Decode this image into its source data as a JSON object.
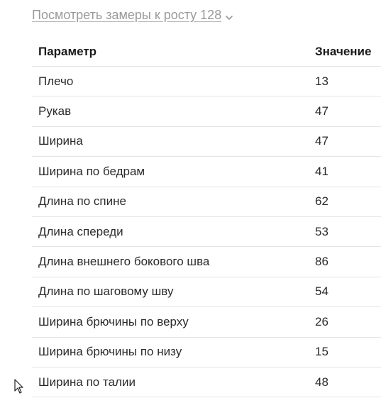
{
  "measurements_toggle": {
    "label": "Посмотреть замеры к росту 128",
    "icon": "chevron-down-icon"
  },
  "table": {
    "headers": {
      "param": "Параметр",
      "value": "Значение"
    },
    "rows": [
      {
        "param": "Плечо",
        "value": "13"
      },
      {
        "param": "Рукав",
        "value": "47"
      },
      {
        "param": "Ширина",
        "value": "47"
      },
      {
        "param": "Ширина по бедрам",
        "value": "41"
      },
      {
        "param": "Длина по спине",
        "value": "62"
      },
      {
        "param": "Длина спереди",
        "value": "53"
      },
      {
        "param": "Длина внешнего бокового шва",
        "value": "86"
      },
      {
        "param": "Длина по шаговому шву",
        "value": "54"
      },
      {
        "param": "Ширина брючины по верху",
        "value": "26"
      },
      {
        "param": "Ширина брючины по низу",
        "value": "15"
      },
      {
        "param": "Ширина по талии",
        "value": "48"
      }
    ]
  },
  "colors": {
    "link": "#9a9a9a",
    "divider": "#e4e4e4",
    "text": "#2b2b2b"
  }
}
